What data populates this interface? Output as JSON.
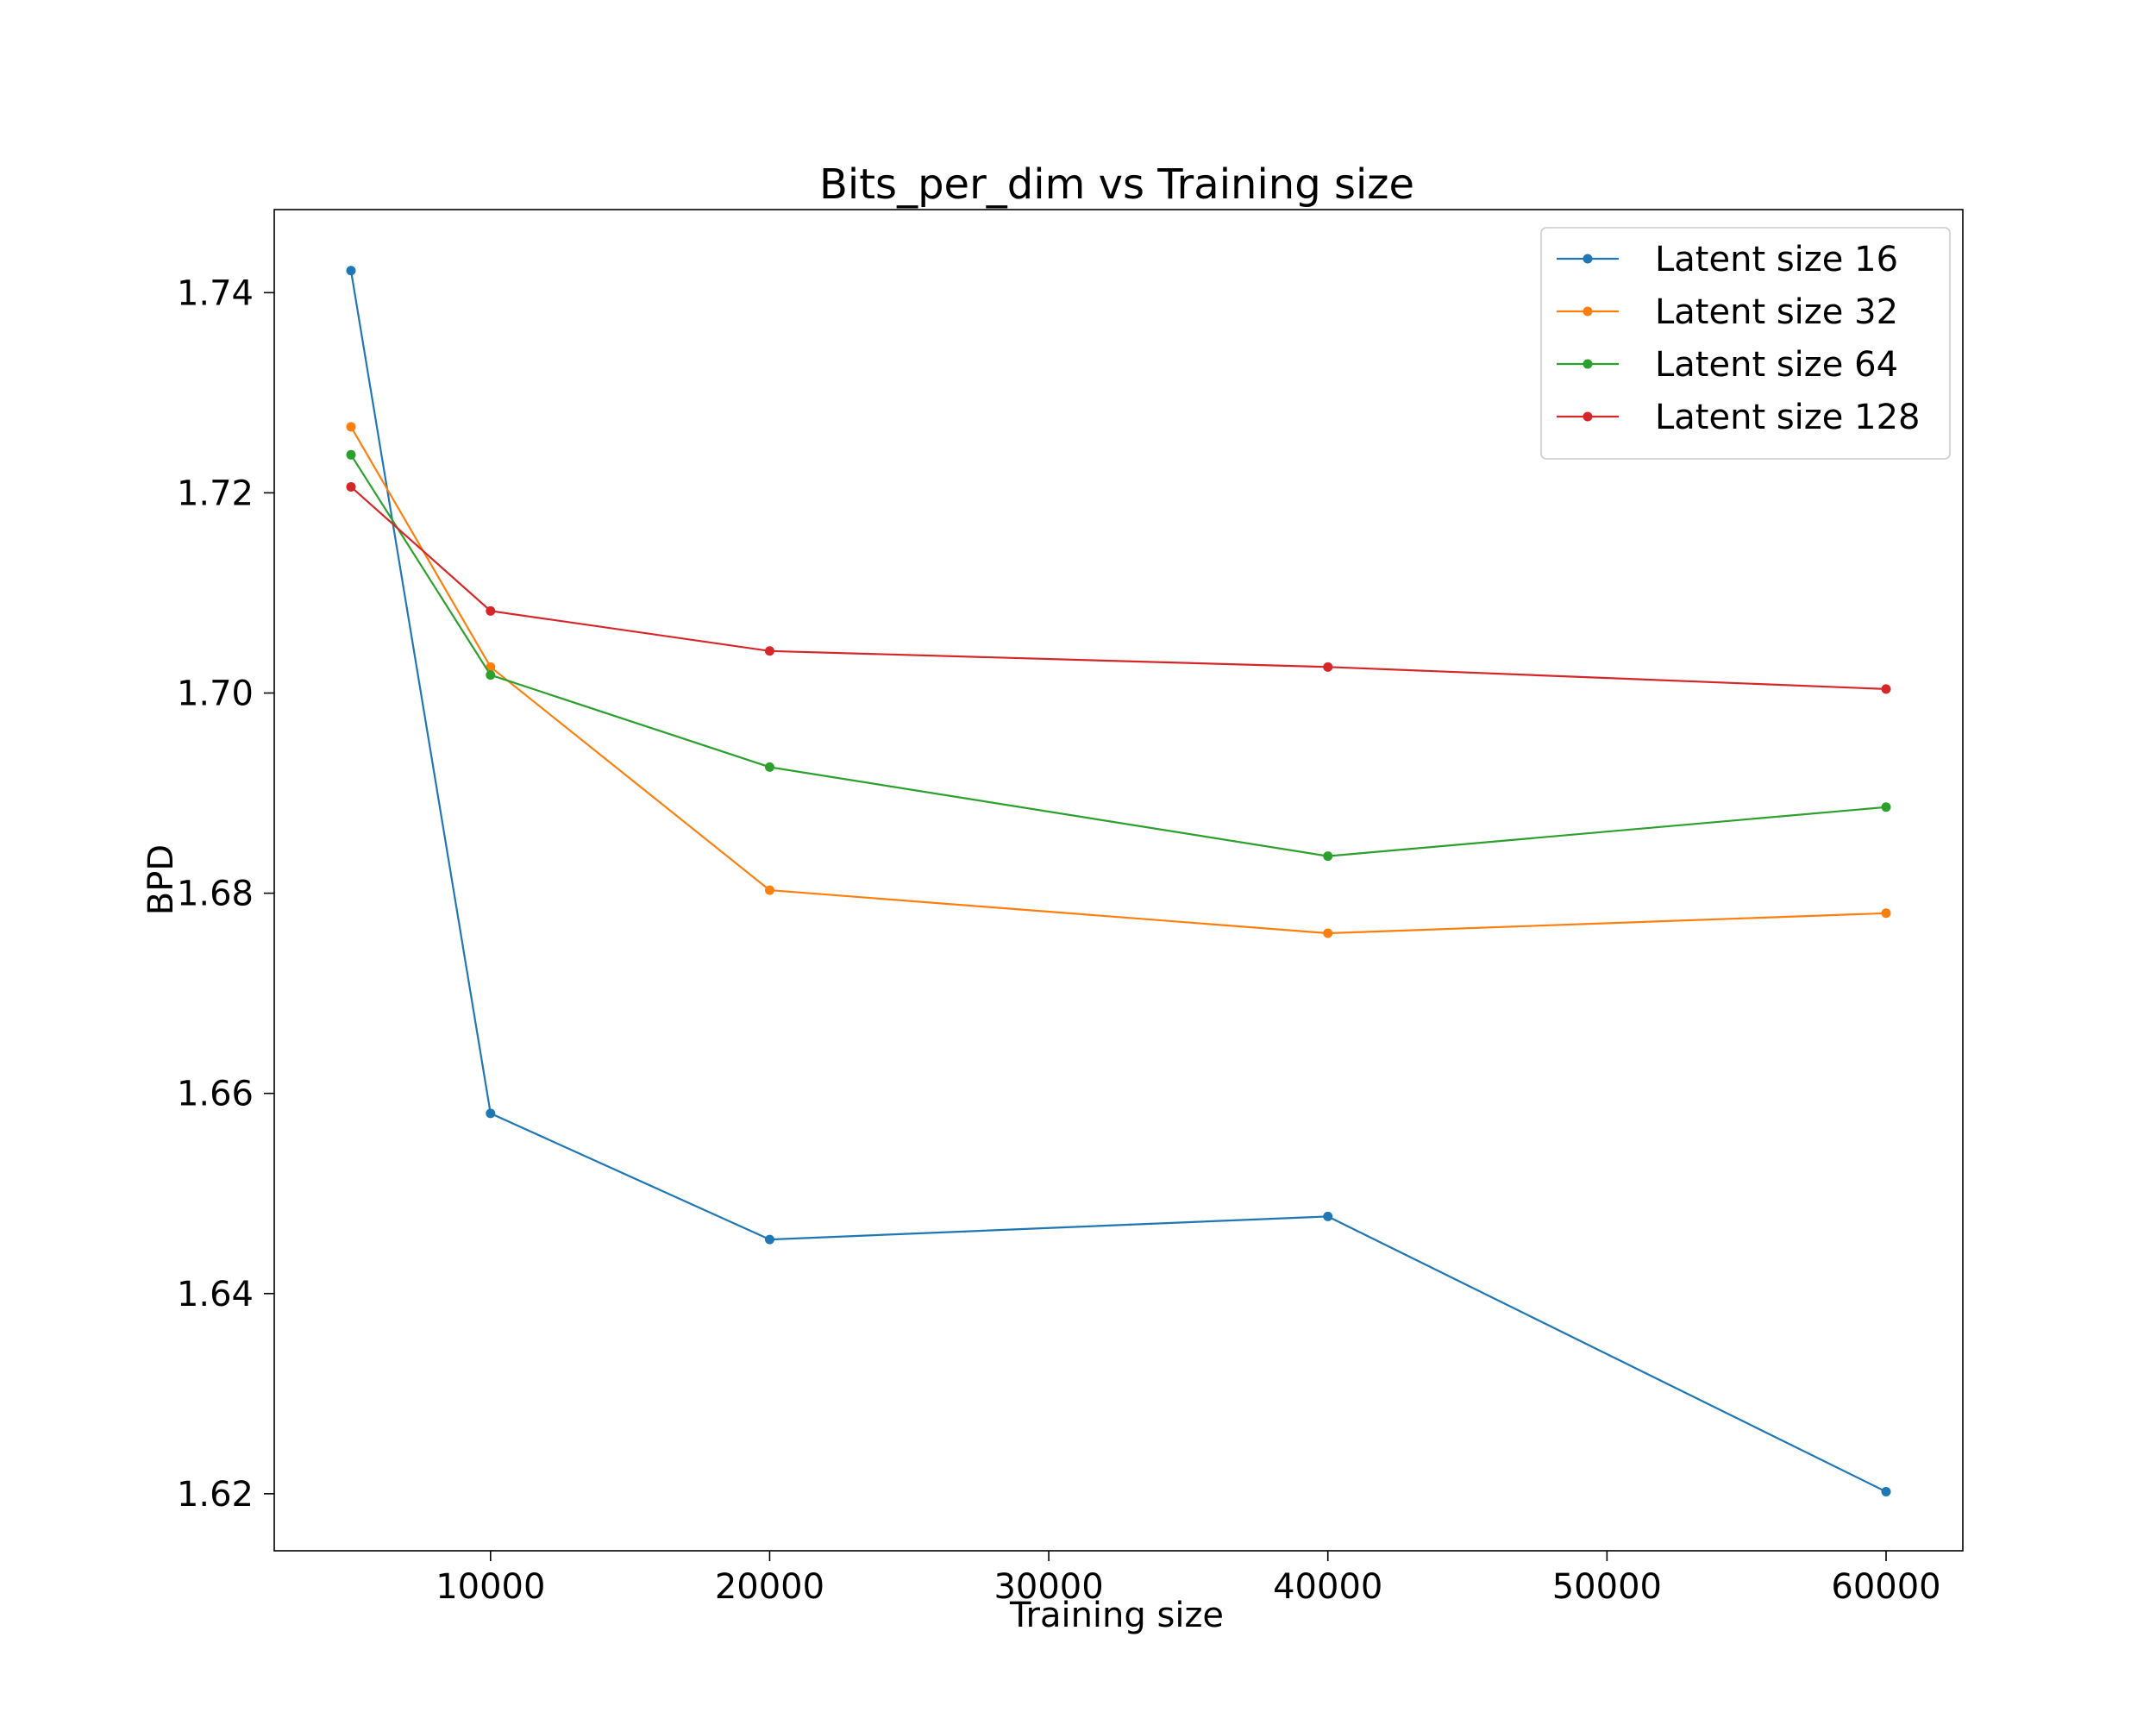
{
  "chart_data": {
    "type": "line",
    "title": "Bits_per_dim vs Training size",
    "xlabel": "Training size",
    "ylabel": "BPD",
    "x": [
      5000,
      10000,
      20000,
      40000,
      60000
    ],
    "xlim": [
      2250,
      62750
    ],
    "ylim": [
      1.6143,
      1.7483
    ],
    "xticks": [
      10000,
      20000,
      30000,
      40000,
      50000,
      60000
    ],
    "yticks": [
      1.62,
      1.64,
      1.66,
      1.68,
      1.7,
      1.72,
      1.74
    ],
    "ytick_labels": [
      "1.62",
      "1.64",
      "1.66",
      "1.68",
      "1.70",
      "1.72",
      "1.74"
    ],
    "grid": false,
    "legend_position": "top-right",
    "series": [
      {
        "name": "Latent size 16",
        "color": "#1f77b4",
        "values": [
          1.7422,
          1.658,
          1.6454,
          1.6477,
          1.6202
        ]
      },
      {
        "name": "Latent size 32",
        "color": "#ff7f0e",
        "values": [
          1.7266,
          1.7026,
          1.6803,
          1.676,
          1.678
        ]
      },
      {
        "name": "Latent size 64",
        "color": "#2ca02c",
        "values": [
          1.7238,
          1.7018,
          1.6926,
          1.6837,
          1.6886
        ]
      },
      {
        "name": "Latent size 128",
        "color": "#d62728",
        "values": [
          1.7206,
          1.7082,
          1.7042,
          1.7026,
          1.7004
        ]
      }
    ]
  }
}
